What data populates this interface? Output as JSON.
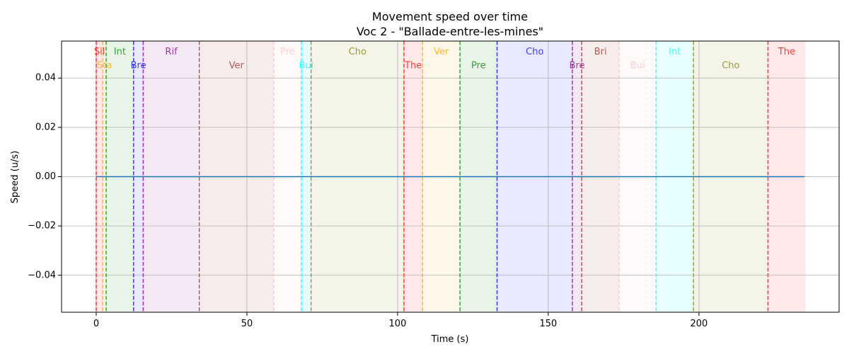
{
  "chart_data": {
    "type": "area",
    "title": "Movement speed over time",
    "subtitle": "Voc 2 - \"Ballade-entre-les-mines\"",
    "xlabel": "Time (s)",
    "ylabel": "Speed (u/s)",
    "xlim": [
      -11.5,
      246.5
    ],
    "ylim": [
      -0.055,
      0.055
    ],
    "xticks": [
      0,
      50,
      100,
      150,
      200
    ],
    "xtick_labels": [
      "0",
      "50",
      "100",
      "150",
      "200"
    ],
    "yticks": [
      -0.04,
      -0.02,
      0.0,
      0.02,
      0.04
    ],
    "ytick_labels": [
      "−0.04",
      "−0.02",
      "0.00",
      "0.02",
      "0.04"
    ],
    "grid": true,
    "series": [
      {
        "values": [
          [
            0,
            0
          ],
          [
            235,
            0
          ]
        ]
      }
    ],
    "sections": [
      {
        "label": "Sil",
        "start": 0.0,
        "end": 2.2,
        "color": "#ff0000",
        "row": 0
      },
      {
        "label": "Sta",
        "start": 2.2,
        "end": 3.3,
        "color": "#ffa500",
        "row": 1
      },
      {
        "label": "Int",
        "start": 3.3,
        "end": 12.4,
        "color": "#008000",
        "row": 0
      },
      {
        "label": "Bre",
        "start": 12.4,
        "end": 15.6,
        "color": "#0000ff",
        "row": 1
      },
      {
        "label": "Rif",
        "start": 15.6,
        "end": 34.2,
        "color": "#800080",
        "row": 0
      },
      {
        "label": "Ver",
        "start": 34.2,
        "end": 58.9,
        "color": "#a52a2a",
        "row": 1
      },
      {
        "label": "Pre",
        "start": 58.9,
        "end": 68.1,
        "color": "#ffc0cb",
        "row": 0
      },
      {
        "label": "Bui",
        "start": 68.1,
        "end": 71.3,
        "color": "#00ffff",
        "row": 1
      },
      {
        "label": "Cho",
        "start": 71.3,
        "end": 102.1,
        "color": "#808000",
        "row": 0
      },
      {
        "label": "The",
        "start": 102.1,
        "end": 108.3,
        "color": "#ff0000",
        "row": 1
      },
      {
        "label": "Ver",
        "start": 108.3,
        "end": 120.7,
        "color": "#ffa500",
        "row": 0
      },
      {
        "label": "Pre",
        "start": 120.7,
        "end": 133.0,
        "color": "#008000",
        "row": 1
      },
      {
        "label": "Cho",
        "start": 133.0,
        "end": 158.0,
        "color": "#0000ff",
        "row": 0
      },
      {
        "label": "Bre",
        "start": 158.0,
        "end": 161.1,
        "color": "#800080",
        "row": 1
      },
      {
        "label": "Bri",
        "start": 161.1,
        "end": 173.5,
        "color": "#a52a2a",
        "row": 0
      },
      {
        "label": "Bui",
        "start": 173.5,
        "end": 185.8,
        "color": "#ffc0cb",
        "row": 1
      },
      {
        "label": "Int",
        "start": 185.8,
        "end": 198.2,
        "color": "#00ffff",
        "row": 0
      },
      {
        "label": "Cho",
        "start": 198.2,
        "end": 222.9,
        "color": "#808000",
        "row": 1
      },
      {
        "label": "The",
        "start": 222.9,
        "end": 235.3,
        "color": "#ff0000",
        "row": 0
      }
    ]
  }
}
